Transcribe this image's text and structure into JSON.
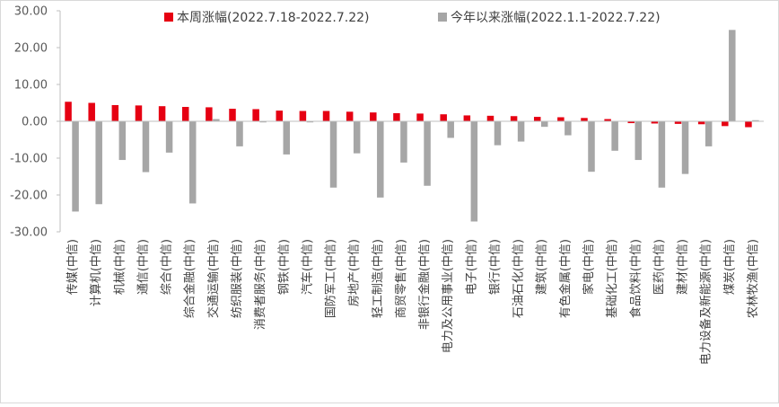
{
  "chart_data": {
    "type": "bar",
    "title": "",
    "xlabel": "",
    "ylabel": "",
    "ylim": [
      -30,
      30
    ],
    "yticks": [
      30,
      20,
      10,
      0,
      -10,
      -20,
      -30
    ],
    "ytick_labels": [
      "30.00",
      "20.00",
      "10.00",
      "0.00",
      "-10.00",
      "-20.00",
      "-30.00"
    ],
    "grid": false,
    "legend_position": "top",
    "categories": [
      "传媒(中信)",
      "计算机(中信)",
      "机械(中信)",
      "通信(中信)",
      "综合(中信)",
      "综合金融(中信)",
      "交通运输(中信)",
      "纺织服装(中信)",
      "消费者服务(中信)",
      "钢铁(中信)",
      "汽车(中信)",
      "国防军工(中信)",
      "房地产(中信)",
      "轻工制造(中信)",
      "商贸零售(中信)",
      "非银行金融(中信)",
      "电力及公用事业(中信)",
      "电子(中信)",
      "银行(中信)",
      "石油石化(中信)",
      "建筑(中信)",
      "有色金属(中信)",
      "家电(中信)",
      "基础化工(中信)",
      "食品饮料(中信)",
      "医药(中信)",
      "建材(中信)",
      "电力设备及新能源(中信)",
      "煤炭(中信)",
      "农林牧渔(中信)"
    ],
    "series": [
      {
        "name": "本周涨幅(2022.7.18-2022.7.22)",
        "color": "#e60012",
        "values": [
          5.3,
          5.0,
          4.4,
          4.3,
          4.1,
          3.9,
          3.8,
          3.4,
          3.3,
          2.9,
          2.8,
          2.8,
          2.6,
          2.4,
          2.2,
          2.1,
          1.9,
          1.6,
          1.5,
          1.4,
          1.2,
          1.1,
          0.9,
          0.6,
          -0.5,
          -0.6,
          -0.7,
          -0.8,
          -1.3,
          -1.6
        ]
      },
      {
        "name": "今年以来涨幅(2022.1.1-2022.7.22)",
        "color": "#a6a6a6",
        "values": [
          -24.5,
          -22.5,
          -10.5,
          -13.8,
          -8.5,
          -22.3,
          0.6,
          -6.8,
          -0.3,
          -9.0,
          -0.3,
          -18.0,
          -8.7,
          -20.7,
          -11.2,
          -17.5,
          -4.5,
          -27.2,
          -6.5,
          -5.5,
          -1.5,
          -3.8,
          -13.7,
          -8.0,
          -10.5,
          -18.0,
          -14.3,
          -6.8,
          24.8,
          0.3
        ]
      }
    ]
  }
}
